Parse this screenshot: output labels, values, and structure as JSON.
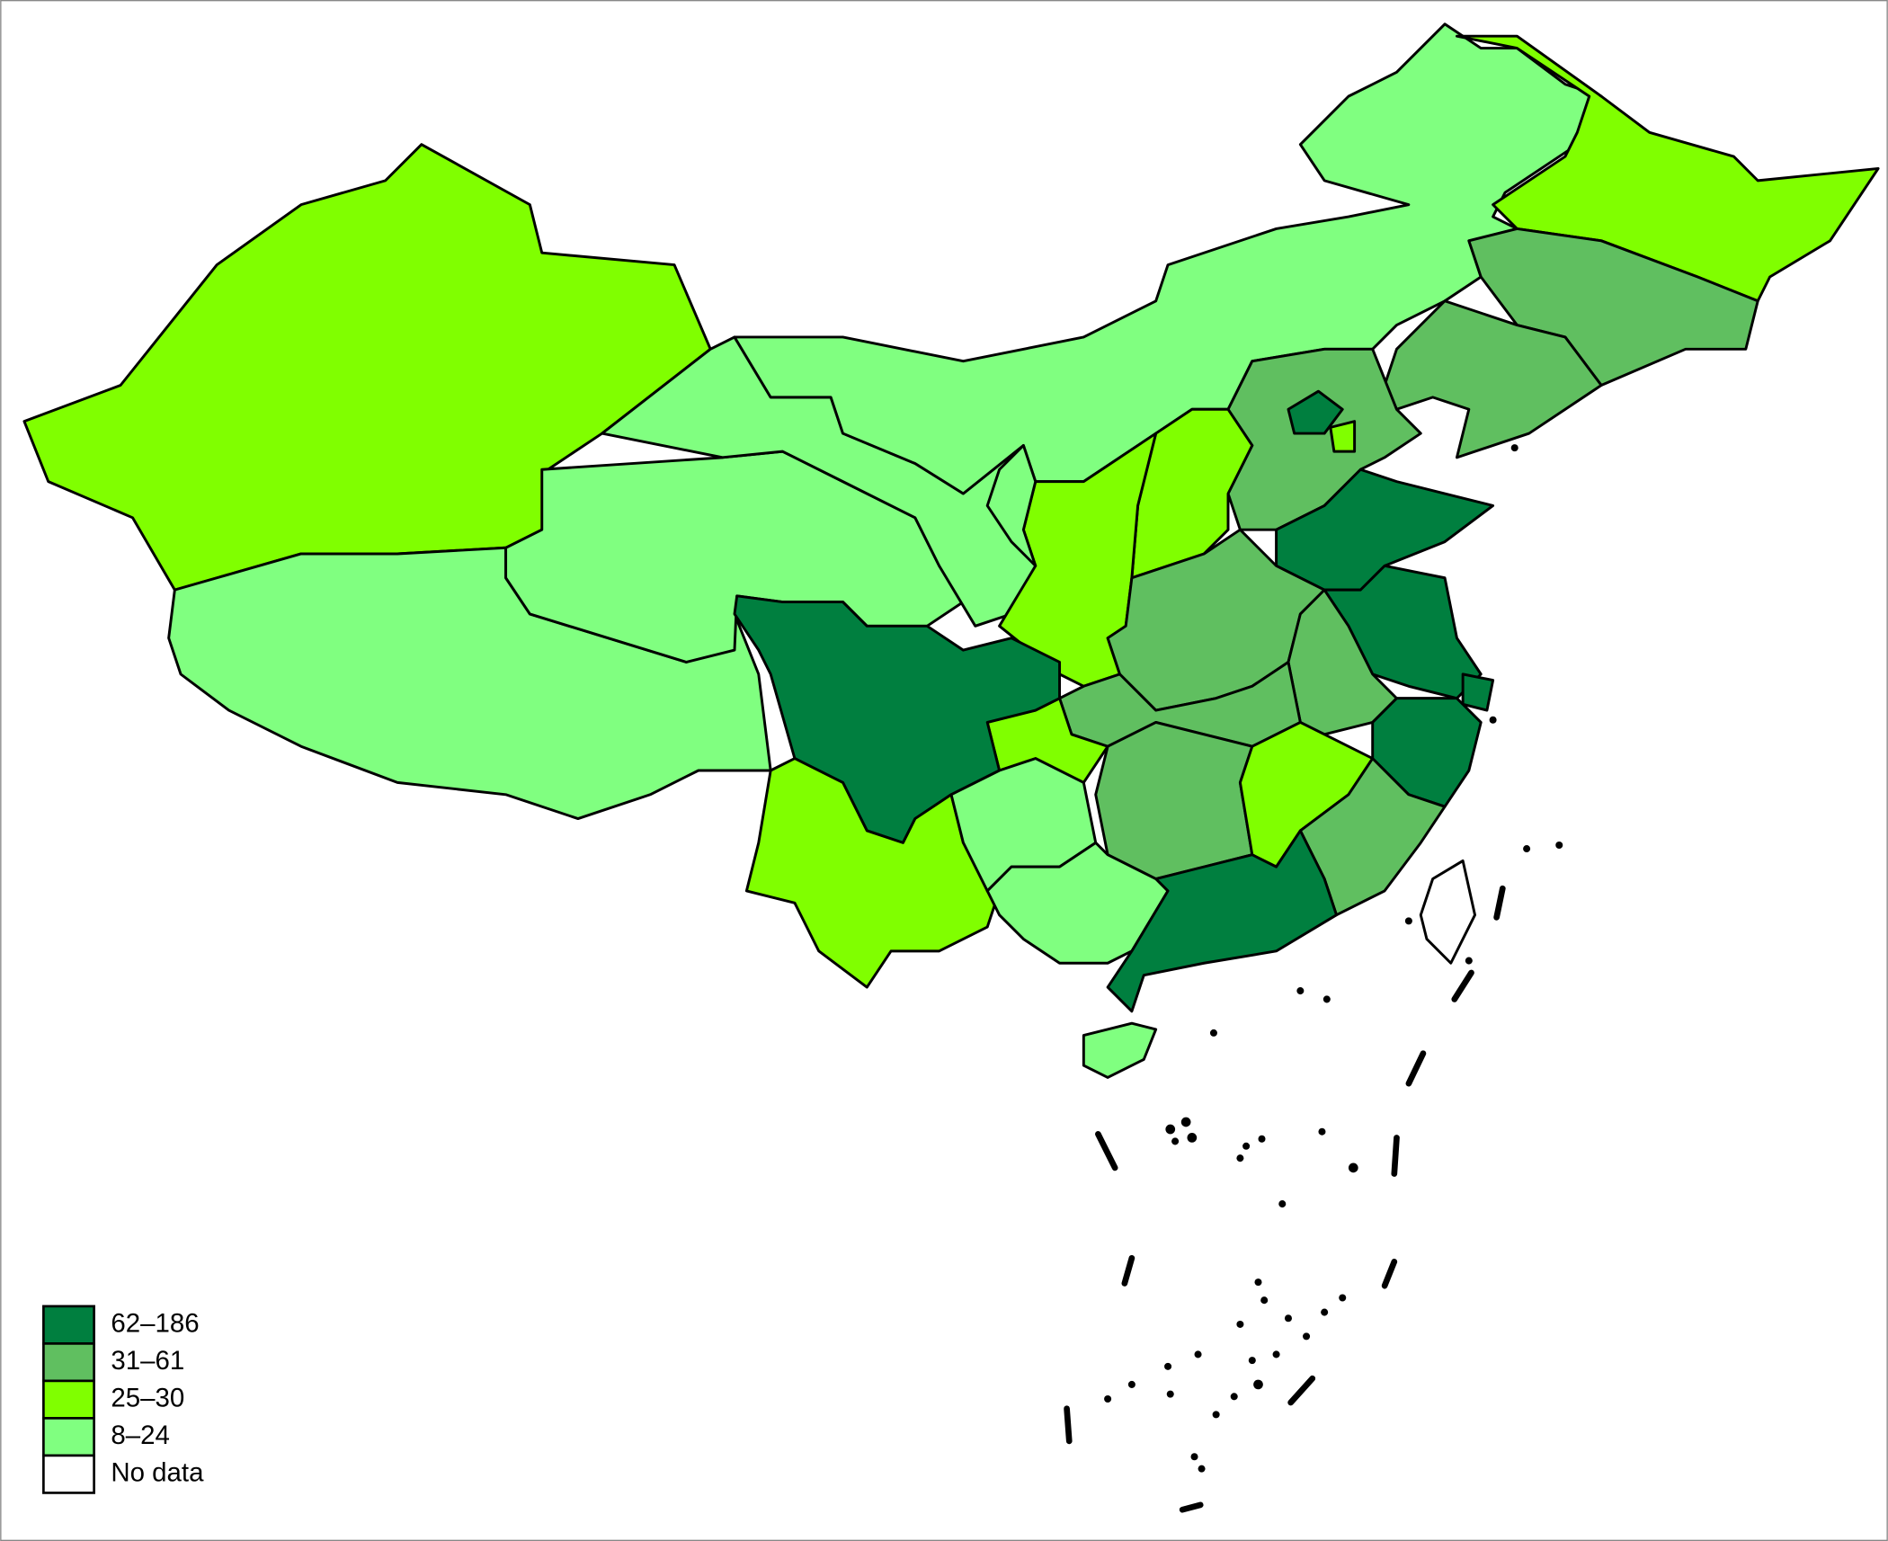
{
  "legend": [
    {
      "label": "62–186",
      "color": "#007f3f"
    },
    {
      "label": "31–61",
      "color": "#60bf60"
    },
    {
      "label": "25–30",
      "color": "#80ff00"
    },
    {
      "label": "8–24",
      "color": "#80ff80"
    },
    {
      "label": "No data",
      "color": "#ffffff"
    }
  ]
}
